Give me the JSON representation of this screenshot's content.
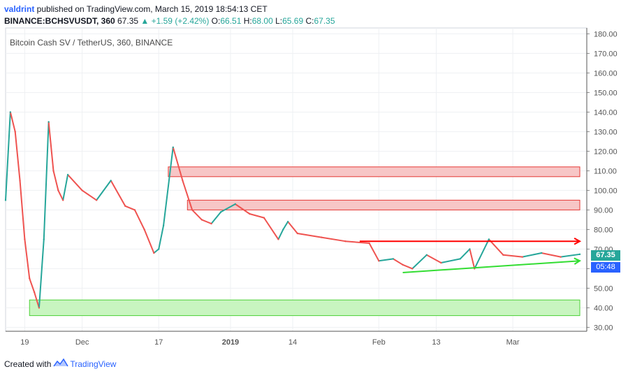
{
  "header": {
    "author": "valdrint",
    "published": " published on TradingView.com, March 15, 2019 18:54:13 CET",
    "symbol": "BINANCE:BCHSVUSDT, 360",
    "last": " 67.35 ",
    "change": "▲ +1.59 (+2.42%)",
    "o_label": " O:",
    "o_val": "66.51",
    "h_label": " H:",
    "h_val": "68.00",
    "l_label": " L:",
    "l_val": "65.69",
    "c_label": " C:",
    "c_val": "67.35"
  },
  "footer": {
    "created_with": "Created with",
    "brand": "TradingView"
  },
  "badges": {
    "price": "67.35",
    "timer": "05:48"
  },
  "colors": {
    "up": "#26a69a",
    "down": "#ef5350",
    "zone_red_fill": "#f7c6c6",
    "zone_red_line": "#e53935",
    "zone_green_fill": "#c8f5c0",
    "zone_green_line": "#4cd137",
    "arrow_red": "#ff0000",
    "arrow_green": "#33dd33",
    "grid": "#eef0f3"
  },
  "chart_data": {
    "type": "line",
    "title": "Bitcoin Cash SV / TetherUS, 360, BINANCE",
    "ylim": [
      28,
      183
    ],
    "y_ticks": [
      30,
      40,
      50,
      60,
      70,
      80,
      90,
      100,
      110,
      120,
      130,
      140,
      150,
      160,
      170,
      180
    ],
    "y_tick_labels": [
      "30.00",
      "40.00",
      "50.00",
      "60.00",
      "70.00",
      "80.00",
      "90.00",
      "100.00",
      "110.00",
      "120.00",
      "130.00",
      "140.00",
      "150.00",
      "160.00",
      "170.00",
      "180.00"
    ],
    "x_ticks": [
      "19",
      "Dec",
      "17",
      "2019",
      "14",
      "Feb",
      "13",
      "Mar"
    ],
    "x_range": [
      "2018-11-15",
      "2019-03-15"
    ],
    "x_tick_dates": [
      "2018-11-19",
      "2018-12-01",
      "2018-12-17",
      "2019-01-01",
      "2019-01-14",
      "2019-02-01",
      "2019-02-13",
      "2019-03-01"
    ],
    "series": [
      {
        "x": [
          "2018-11-15",
          "2018-11-16",
          "2018-11-17",
          "2018-11-18",
          "2018-11-19",
          "2018-11-20",
          "2018-11-21",
          "2018-11-22",
          "2018-11-23",
          "2018-11-24",
          "2018-11-25",
          "2018-11-26",
          "2018-11-27",
          "2018-11-28",
          "2018-12-01",
          "2018-12-04",
          "2018-12-07",
          "2018-12-10",
          "2018-12-12",
          "2018-12-14",
          "2018-12-16",
          "2018-12-17",
          "2018-12-18",
          "2018-12-20",
          "2018-12-22",
          "2018-12-24",
          "2018-12-26",
          "2018-12-28",
          "2018-12-30",
          "2019-01-02",
          "2019-01-05",
          "2019-01-08",
          "2019-01-11",
          "2019-01-12",
          "2019-01-13",
          "2019-01-15",
          "2019-01-20",
          "2019-01-25",
          "2019-01-30",
          "2019-02-01",
          "2019-02-04",
          "2019-02-06",
          "2019-02-08",
          "2019-02-11",
          "2019-02-14",
          "2019-02-18",
          "2019-02-20",
          "2019-02-21",
          "2019-02-24",
          "2019-02-27",
          "2019-03-03",
          "2019-03-07",
          "2019-03-11",
          "2019-03-15"
        ],
        "values": [
          95,
          140,
          130,
          105,
          75,
          55,
          48,
          40,
          75,
          135,
          110,
          100,
          95,
          108,
          100,
          95,
          105,
          92,
          90,
          80,
          68,
          70,
          82,
          122,
          105,
          90,
          85,
          83,
          89,
          93,
          88,
          86,
          75,
          80,
          84,
          78,
          76,
          74,
          73,
          64,
          65,
          62,
          60,
          67,
          63,
          65,
          70,
          60,
          75,
          67,
          66,
          68,
          66,
          67.35
        ]
      }
    ],
    "zones": [
      {
        "from": "2018-12-19",
        "to": "2019-03-15",
        "low": 107,
        "high": 112,
        "color": "red"
      },
      {
        "from": "2018-12-23",
        "to": "2019-03-15",
        "low": 90,
        "high": 95,
        "color": "red"
      },
      {
        "from": "2018-11-20",
        "to": "2019-03-15",
        "low": 36,
        "high": 44,
        "color": "green"
      }
    ],
    "lines": [
      {
        "from": [
          "2019-01-28",
          74
        ],
        "to": [
          "2019-03-15",
          74
        ],
        "color": "red"
      },
      {
        "from": [
          "2019-02-06",
          58
        ],
        "to": [
          "2019-03-15",
          64
        ],
        "color": "green"
      }
    ]
  }
}
